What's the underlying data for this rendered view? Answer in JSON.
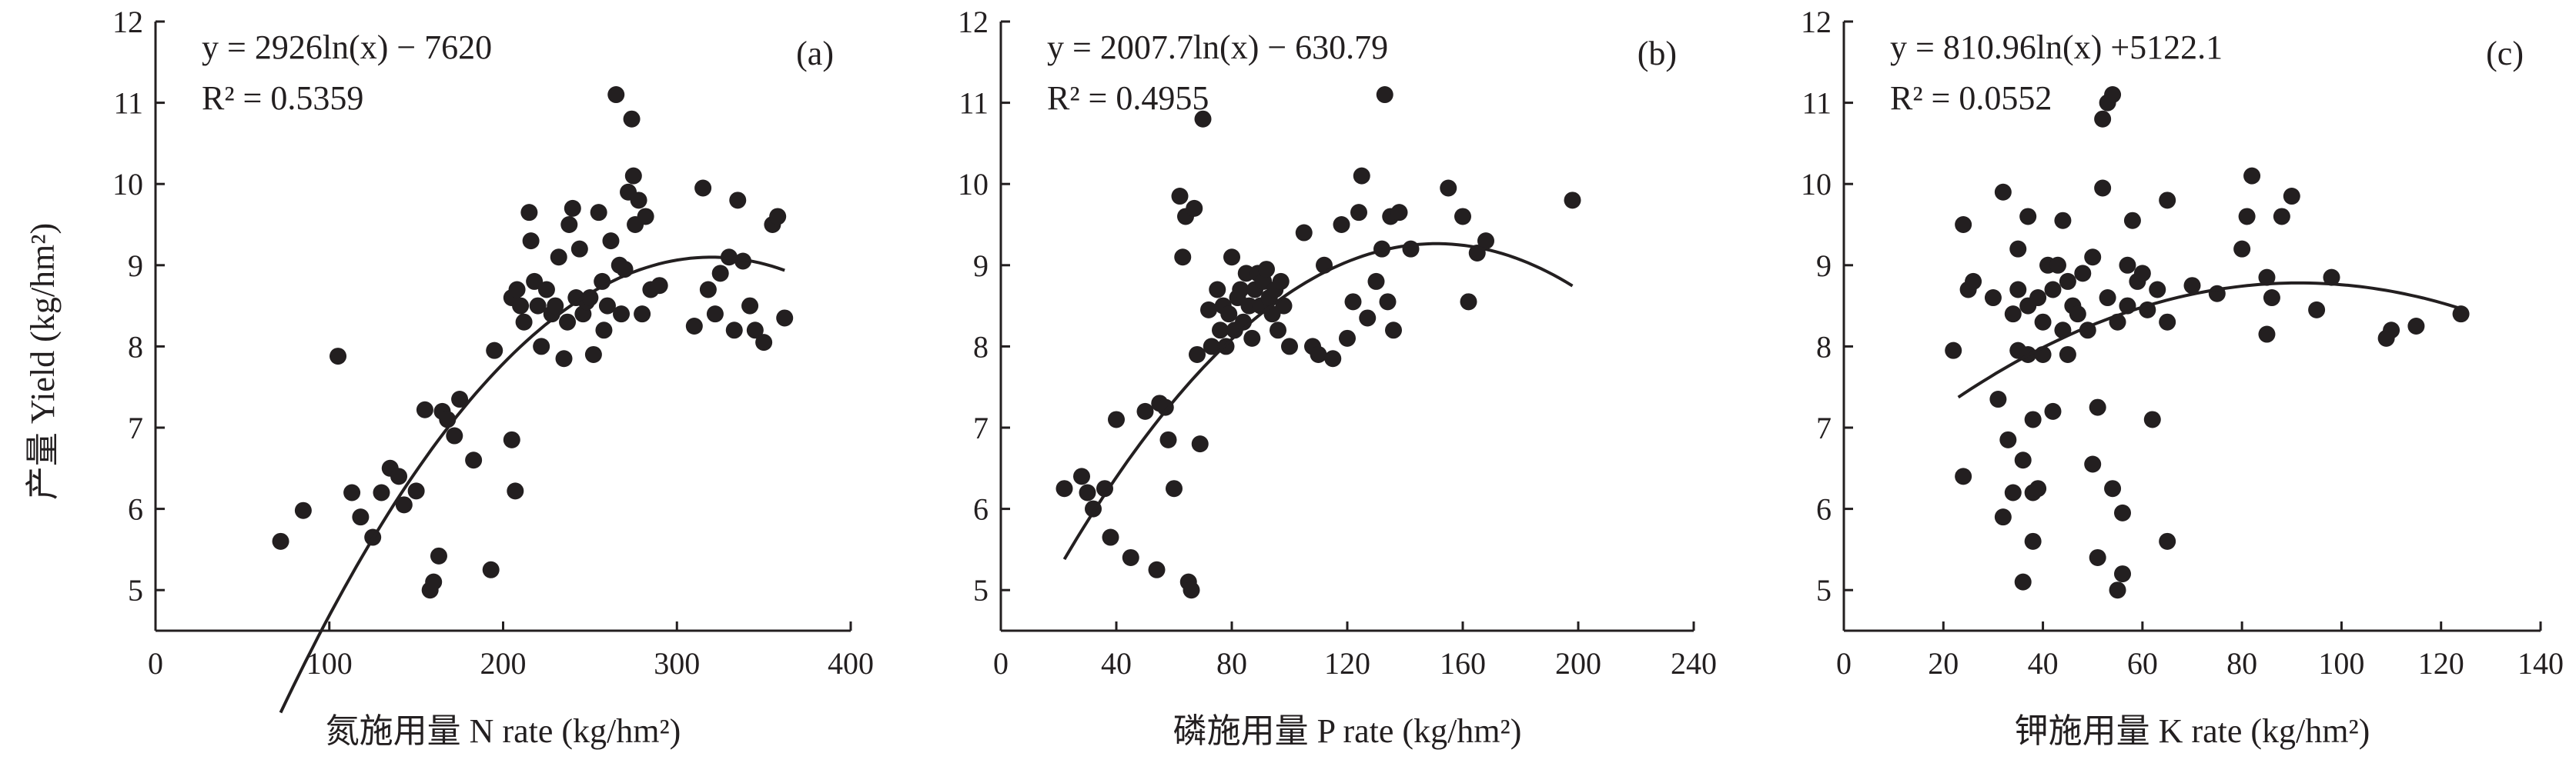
{
  "style": {
    "ink": "#231f20",
    "point_color": "#231f20",
    "background": "#ffffff"
  },
  "y_axis_label": "产量 Yield (kg/hm²)",
  "chart_data": [
    {
      "type": "scatter",
      "panel_label": "(a)",
      "xlabel": "氮施用量 N rate (kg/hm²)",
      "ylabel": "产量 Yield (kg/hm²)",
      "equation": "y = 2926ln(x) − 7620",
      "r2_label": "R² = 0.5359",
      "xlim": [
        0,
        400
      ],
      "ylim": [
        4.5,
        12
      ],
      "xticks": [
        0,
        100,
        200,
        300,
        400
      ],
      "yticks": [
        5,
        6,
        7,
        8,
        9,
        10,
        11,
        12
      ],
      "trend_curve": {
        "a": -9.13e-05,
        "b": 0.0584,
        "c": -0.24,
        "x_from": 72,
        "x_to": 362
      },
      "points": [
        [
          72,
          5.6
        ],
        [
          85,
          5.98
        ],
        [
          105,
          7.88
        ],
        [
          113,
          6.2
        ],
        [
          118,
          5.9
        ],
        [
          125,
          5.65
        ],
        [
          130,
          6.2
        ],
        [
          135,
          6.5
        ],
        [
          140,
          6.4
        ],
        [
          143,
          6.05
        ],
        [
          150,
          6.22
        ],
        [
          155,
          7.22
        ],
        [
          158,
          5.0
        ],
        [
          160,
          5.1
        ],
        [
          163,
          5.42
        ],
        [
          165,
          7.2
        ],
        [
          168,
          7.1
        ],
        [
          172,
          6.9
        ],
        [
          175,
          7.35
        ],
        [
          183,
          6.6
        ],
        [
          193,
          5.25
        ],
        [
          195,
          7.95
        ],
        [
          205,
          6.85
        ],
        [
          207,
          6.22
        ],
        [
          205,
          8.6
        ],
        [
          208,
          8.7
        ],
        [
          210,
          8.5
        ],
        [
          212,
          8.3
        ],
        [
          215,
          9.65
        ],
        [
          216,
          9.3
        ],
        [
          218,
          8.8
        ],
        [
          220,
          8.5
        ],
        [
          222,
          8.0
        ],
        [
          225,
          8.7
        ],
        [
          228,
          8.4
        ],
        [
          230,
          8.5
        ],
        [
          232,
          9.1
        ],
        [
          235,
          7.85
        ],
        [
          237,
          8.3
        ],
        [
          238,
          9.5
        ],
        [
          240,
          9.7
        ],
        [
          242,
          8.6
        ],
        [
          244,
          9.2
        ],
        [
          246,
          8.4
        ],
        [
          248,
          8.55
        ],
        [
          250,
          8.6
        ],
        [
          252,
          7.9
        ],
        [
          255,
          9.65
        ],
        [
          257,
          8.8
        ],
        [
          258,
          8.2
        ],
        [
          260,
          8.5
        ],
        [
          262,
          9.3
        ],
        [
          265,
          11.1
        ],
        [
          267,
          9.0
        ],
        [
          268,
          8.4
        ],
        [
          270,
          8.95
        ],
        [
          272,
          9.9
        ],
        [
          274,
          10.8
        ],
        [
          275,
          10.1
        ],
        [
          276,
          9.5
        ],
        [
          278,
          9.8
        ],
        [
          280,
          8.4
        ],
        [
          282,
          9.6
        ],
        [
          285,
          8.7
        ],
        [
          290,
          8.75
        ],
        [
          310,
          8.25
        ],
        [
          315,
          9.95
        ],
        [
          318,
          8.7
        ],
        [
          322,
          8.4
        ],
        [
          325,
          8.9
        ],
        [
          330,
          9.1
        ],
        [
          333,
          8.2
        ],
        [
          335,
          9.8
        ],
        [
          338,
          9.05
        ],
        [
          342,
          8.5
        ],
        [
          345,
          8.2
        ],
        [
          350,
          8.05
        ],
        [
          355,
          9.5
        ],
        [
          358,
          9.6
        ],
        [
          362,
          8.35
        ]
      ]
    },
    {
      "type": "scatter",
      "panel_label": "(b)",
      "xlabel": "磷施用量 P rate (kg/hm²)",
      "ylabel": "产量 Yield (kg/hm²)",
      "equation": "y = 2007.7ln(x) − 630.79",
      "r2_label": "R² = 0.4955",
      "xlim": [
        0,
        240
      ],
      "ylim": [
        4.5,
        12
      ],
      "xticks": [
        0,
        40,
        80,
        120,
        160,
        200,
        240
      ],
      "yticks": [
        5,
        6,
        7,
        8,
        9,
        10,
        11,
        12
      ],
      "trend_curve": {
        "a": -0.000234,
        "b": 0.0706,
        "c": 3.94,
        "x_from": 22,
        "x_to": 198
      },
      "points": [
        [
          22,
          6.25
        ],
        [
          28,
          6.4
        ],
        [
          30,
          6.2
        ],
        [
          32,
          6.0
        ],
        [
          36,
          6.25
        ],
        [
          38,
          5.65
        ],
        [
          40,
          7.1
        ],
        [
          45,
          5.4
        ],
        [
          50,
          7.2
        ],
        [
          54,
          5.25
        ],
        [
          55,
          7.3
        ],
        [
          57,
          7.25
        ],
        [
          58,
          6.85
        ],
        [
          60,
          6.25
        ],
        [
          62,
          9.85
        ],
        [
          63,
          9.1
        ],
        [
          64,
          9.6
        ],
        [
          65,
          5.1
        ],
        [
          66,
          5.0
        ],
        [
          67,
          9.7
        ],
        [
          68,
          7.9
        ],
        [
          69,
          6.8
        ],
        [
          70,
          10.8
        ],
        [
          72,
          8.45
        ],
        [
          73,
          8.0
        ],
        [
          75,
          8.7
        ],
        [
          76,
          8.2
        ],
        [
          77,
          8.5
        ],
        [
          78,
          8.0
        ],
        [
          79,
          8.4
        ],
        [
          80,
          9.1
        ],
        [
          81,
          8.2
        ],
        [
          82,
          8.6
        ],
        [
          83,
          8.7
        ],
        [
          84,
          8.3
        ],
        [
          85,
          8.9
        ],
        [
          86,
          8.5
        ],
        [
          87,
          8.1
        ],
        [
          88,
          8.7
        ],
        [
          89,
          8.9
        ],
        [
          90,
          8.5
        ],
        [
          91,
          8.8
        ],
        [
          92,
          8.95
        ],
        [
          93,
          8.6
        ],
        [
          94,
          8.4
        ],
        [
          95,
          8.7
        ],
        [
          96,
          8.2
        ],
        [
          97,
          8.8
        ],
        [
          98,
          8.5
        ],
        [
          100,
          8.0
        ],
        [
          105,
          9.4
        ],
        [
          108,
          8.0
        ],
        [
          110,
          7.9
        ],
        [
          112,
          9.0
        ],
        [
          115,
          7.85
        ],
        [
          118,
          9.5
        ],
        [
          120,
          8.1
        ],
        [
          122,
          8.55
        ],
        [
          124,
          9.65
        ],
        [
          125,
          10.1
        ],
        [
          127,
          8.35
        ],
        [
          130,
          8.8
        ],
        [
          132,
          9.2
        ],
        [
          133,
          11.1
        ],
        [
          134,
          8.55
        ],
        [
          135,
          9.6
        ],
        [
          136,
          8.2
        ],
        [
          138,
          9.65
        ],
        [
          142,
          9.2
        ],
        [
          155,
          9.95
        ],
        [
          160,
          9.6
        ],
        [
          162,
          8.55
        ],
        [
          165,
          9.15
        ],
        [
          168,
          9.3
        ],
        [
          198,
          9.8
        ]
      ]
    },
    {
      "type": "scatter",
      "panel_label": "(c)",
      "xlabel": "钾施用量 K rate (kg/hm²)",
      "ylabel": "产量 Yield (kg/hm²)",
      "equation": "y = 810.96ln(x) +5122.1",
      "r2_label": "R² = 0.0552",
      "xlim": [
        0,
        140
      ],
      "ylim": [
        4.5,
        12
      ],
      "xticks": [
        0,
        20,
        40,
        60,
        80,
        100,
        120,
        140
      ],
      "yticks": [
        5,
        6,
        7,
        8,
        9,
        10,
        11,
        12
      ],
      "trend_curve": {
        "a": -0.0003,
        "b": 0.0549,
        "c": 6.27,
        "x_from": 23,
        "x_to": 124
      },
      "points": [
        [
          22,
          7.95
        ],
        [
          24,
          6.4
        ],
        [
          24,
          9.5
        ],
        [
          25,
          8.7
        ],
        [
          26,
          8.8
        ],
        [
          30,
          8.6
        ],
        [
          31,
          7.35
        ],
        [
          32,
          9.9
        ],
        [
          32,
          5.9
        ],
        [
          33,
          6.85
        ],
        [
          34,
          8.4
        ],
        [
          34,
          6.2
        ],
        [
          35,
          8.7
        ],
        [
          35,
          7.95
        ],
        [
          35,
          9.2
        ],
        [
          36,
          5.1
        ],
        [
          36,
          6.6
        ],
        [
          37,
          9.6
        ],
        [
          37,
          7.9
        ],
        [
          37,
          8.5
        ],
        [
          38,
          6.2
        ],
        [
          38,
          7.1
        ],
        [
          38,
          5.6
        ],
        [
          39,
          8.6
        ],
        [
          39,
          6.25
        ],
        [
          40,
          8.3
        ],
        [
          40,
          7.9
        ],
        [
          41,
          9.0
        ],
        [
          42,
          7.2
        ],
        [
          42,
          8.7
        ],
        [
          43,
          9.0
        ],
        [
          44,
          8.2
        ],
        [
          44,
          9.55
        ],
        [
          45,
          7.9
        ],
        [
          45,
          8.8
        ],
        [
          46,
          8.5
        ],
        [
          47,
          8.4
        ],
        [
          48,
          8.9
        ],
        [
          49,
          8.2
        ],
        [
          50,
          9.1
        ],
        [
          50,
          6.55
        ],
        [
          51,
          5.4
        ],
        [
          51,
          7.25
        ],
        [
          52,
          9.95
        ],
        [
          52,
          10.8
        ],
        [
          53,
          8.6
        ],
        [
          53,
          11.0
        ],
        [
          54,
          11.1
        ],
        [
          54,
          6.25
        ],
        [
          55,
          5.0
        ],
        [
          55,
          8.3
        ],
        [
          56,
          5.2
        ],
        [
          56,
          5.95
        ],
        [
          57,
          9.0
        ],
        [
          57,
          8.5
        ],
        [
          58,
          9.55
        ],
        [
          59,
          8.8
        ],
        [
          60,
          8.9
        ],
        [
          61,
          8.45
        ],
        [
          62,
          7.1
        ],
        [
          63,
          8.7
        ],
        [
          65,
          8.3
        ],
        [
          65,
          9.8
        ],
        [
          65,
          5.6
        ],
        [
          70,
          8.75
        ],
        [
          75,
          8.65
        ],
        [
          80,
          9.2
        ],
        [
          81,
          9.6
        ],
        [
          82,
          10.1
        ],
        [
          85,
          8.15
        ],
        [
          85,
          8.85
        ],
        [
          86,
          8.6
        ],
        [
          88,
          9.6
        ],
        [
          90,
          9.85
        ],
        [
          95,
          8.45
        ],
        [
          98,
          8.85
        ],
        [
          109,
          8.1
        ],
        [
          110,
          8.2
        ],
        [
          115,
          8.25
        ],
        [
          124,
          8.4
        ]
      ]
    }
  ]
}
